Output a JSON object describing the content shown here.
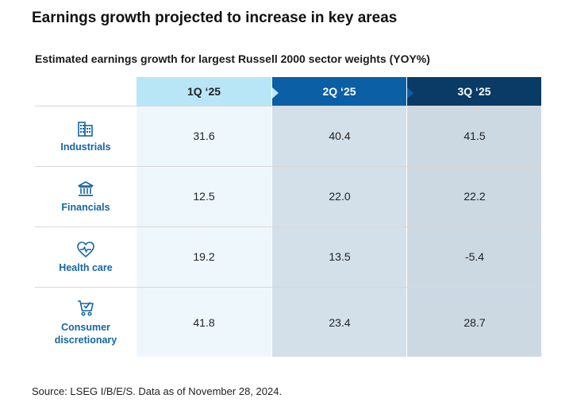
{
  "title": "Earnings growth projected to increase in key areas",
  "subtitle": "Estimated earnings growth for largest Russell 2000 sector weights (YOY%)",
  "source": "Source: LSEG I/B/E/S. Data as of November 28, 2024.",
  "colors": {
    "col1_header": "#b9e6f7",
    "col1_body": "#eef8fc",
    "col2_header": "#0b5fa5",
    "col2_body": "#d3e0ea",
    "col3_header": "#0a3a66",
    "col3_body": "#ccd9e3",
    "category_text": "#1565a3"
  },
  "icons": [
    "building-icon",
    "bank-icon",
    "heart-pulse-icon",
    "shopping-cart-icon"
  ],
  "chart_data": {
    "type": "table",
    "columns": [
      "1Q ‘25",
      "2Q ‘25",
      "3Q ‘25"
    ],
    "rows": [
      {
        "label": "Industrials",
        "values": [
          "31.6",
          "40.4",
          "41.5"
        ]
      },
      {
        "label": "Financials",
        "values": [
          "12.5",
          "22.0",
          "22.2"
        ]
      },
      {
        "label": "Health care",
        "values": [
          "19.2",
          "13.5",
          "-5.4"
        ]
      },
      {
        "label": "Consumer\ndiscretionary",
        "values": [
          "41.8",
          "23.4",
          "28.7"
        ]
      }
    ]
  }
}
